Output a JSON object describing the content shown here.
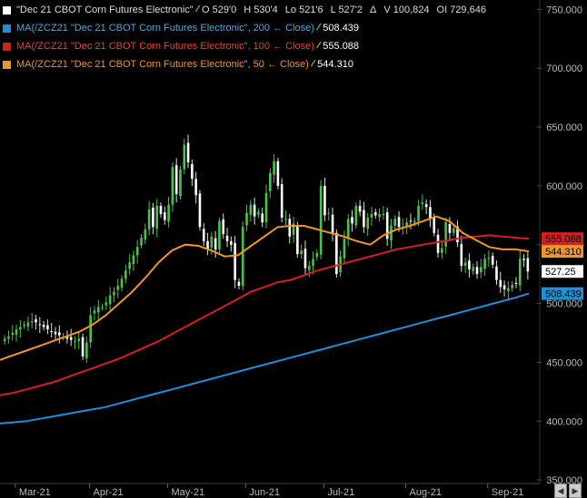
{
  "legend": {
    "main": {
      "title": "\"Dec 21 CBOT Corn Futures Electronic\"",
      "color": "#ffffff",
      "o": "O 529'0",
      "h": "H 530'4",
      "lo": "Lo 521'6",
      "l": "L 527'2",
      "delta": "Δ",
      "v": "V 100,824",
      "oi": "OI 729,646"
    },
    "ma200": {
      "label": "MA(/ZCZ21 \"Dec 21 CBOT Corn Futures Electronic\", 200 ← Close)",
      "value": "508.439",
      "color": "#1e90d6"
    },
    "ma100": {
      "label": "MA(/ZCZ21 \"Dec 21 CBOT Corn Futures Electronic\", 100 ← Close)",
      "value": "555.088",
      "color": "#d42020"
    },
    "ma50": {
      "label": "MA(/ZCZ21 \"Dec 21 CBOT Corn Futures Electronic\", 50 ← Close)",
      "value": "544.310",
      "color": "#f0952a"
    }
  },
  "price_tags": {
    "ma100": "555.088",
    "ma50": "544.310",
    "last": "527.25",
    "ma200": "508.439"
  },
  "nav": {
    "left": "◀",
    "right": "▶"
  },
  "chart_data": {
    "type": "candlestick",
    "ylim": [
      347,
      758
    ],
    "yticks": [
      350,
      400,
      450,
      500,
      550,
      600,
      650,
      700,
      750
    ],
    "ytick_labels": [
      "350.000",
      "400.000",
      "450.000",
      "500.000",
      "550.000",
      "600.000",
      "650.000",
      "700.000",
      "750.000"
    ],
    "xtick_labels": [
      "Mar-21",
      "Apr-21",
      "May-21",
      "Jun-21",
      "Jul-21",
      "Aug-21",
      "Sep-21"
    ],
    "xtick_positions": [
      6,
      25,
      45,
      65,
      85,
      106,
      127
    ],
    "n_bars": 135,
    "closes": [
      470,
      472,
      475,
      478,
      480,
      482,
      484,
      485,
      484,
      482,
      480,
      478,
      476,
      474,
      473,
      472,
      470,
      469,
      468,
      470,
      455,
      467,
      490,
      494,
      497,
      497,
      501,
      507,
      510,
      515,
      521,
      528,
      535,
      541,
      548,
      556,
      563,
      580,
      565,
      583,
      576,
      571,
      584,
      616,
      593,
      614,
      635,
      620,
      606,
      592,
      565,
      553,
      546,
      557,
      546,
      570,
      559,
      553,
      550,
      520,
      515,
      565,
      577,
      584,
      574,
      578,
      569,
      594,
      611,
      621,
      600,
      573,
      572,
      557,
      568,
      542,
      545,
      530,
      532,
      538,
      543,
      600,
      575,
      577,
      560,
      525,
      540,
      555,
      572,
      568,
      583,
      578,
      565,
      573,
      576,
      575,
      576,
      576,
      555,
      566,
      572,
      565,
      565,
      569,
      570,
      570,
      583,
      586,
      582,
      572,
      560,
      543,
      547,
      569,
      560,
      564,
      552,
      532,
      535,
      529,
      531,
      525,
      531,
      538,
      539,
      533,
      520,
      514,
      512,
      513,
      516,
      517,
      538,
      537,
      527.25
    ],
    "series": [
      {
        "name": "MA 200",
        "values": [
          398,
          399,
          400,
          402,
          404,
          406,
          408,
          410,
          412,
          415,
          418,
          421,
          424,
          427,
          430,
          433,
          436,
          439,
          442,
          445,
          448,
          451,
          454,
          457,
          460,
          463,
          466,
          469,
          472,
          475,
          478,
          481,
          484,
          487,
          490,
          493,
          496,
          499,
          502,
          505,
          508.439
        ],
        "color": "#1e90d6"
      },
      {
        "name": "MA 100",
        "values": [
          422,
          424,
          427,
          430,
          433,
          437,
          441,
          445,
          449,
          453,
          458,
          463,
          468,
          474,
          480,
          486,
          492,
          498,
          504,
          510,
          514,
          518,
          520,
          524,
          528,
          531,
          534,
          537,
          540,
          543,
          546,
          548,
          550,
          552,
          554,
          556,
          557,
          558,
          557,
          556,
          555.088
        ],
        "color": "#d42020"
      },
      {
        "name": "MA 50",
        "values": [
          452,
          456,
          460,
          464,
          468,
          472,
          476,
          482,
          490,
          500,
          510,
          522,
          535,
          545,
          550,
          549,
          545,
          540,
          541,
          549,
          557,
          565,
          566,
          566,
          563,
          560,
          557,
          553,
          550,
          558,
          563,
          566,
          570,
          574,
          570,
          560,
          554,
          548,
          546,
          546,
          544.31
        ],
        "color": "#f0952a"
      }
    ]
  }
}
